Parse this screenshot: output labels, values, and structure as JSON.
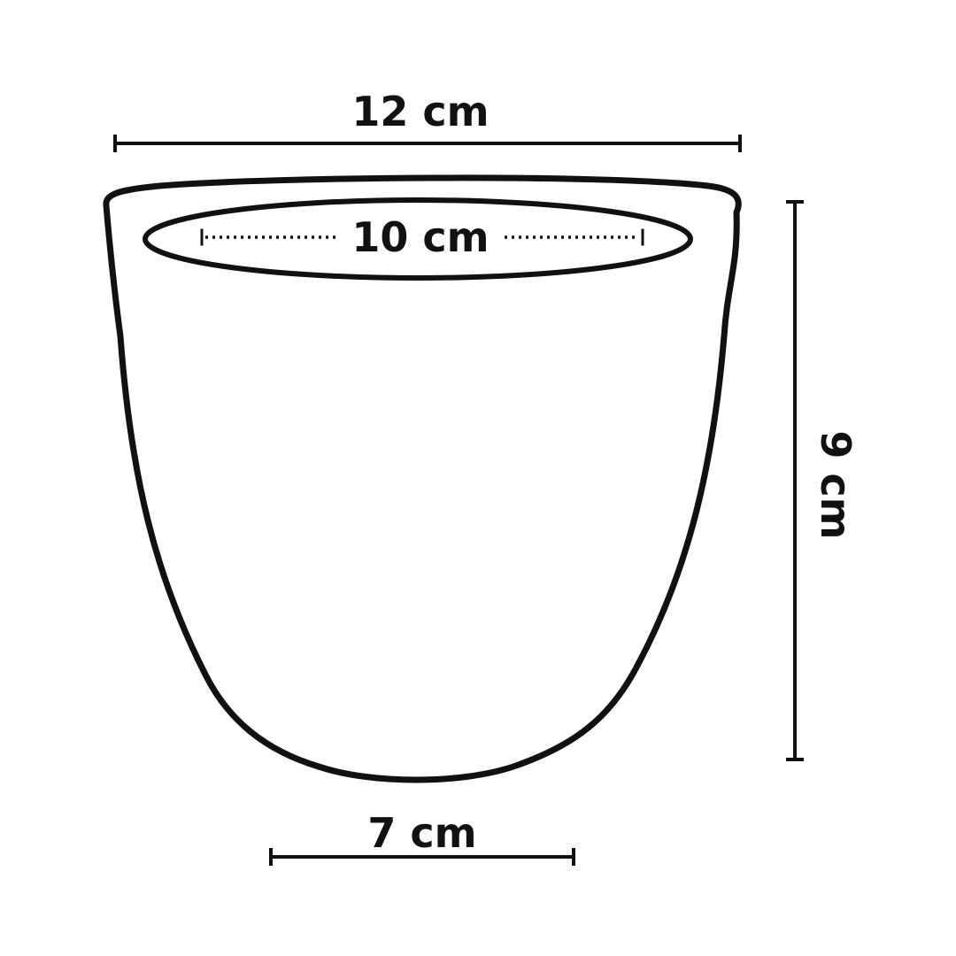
{
  "dimensions": {
    "top_width": "12 cm",
    "inner_diameter": "10 cm",
    "height": "9 cm",
    "bottom_width": "7 cm"
  },
  "colors": {
    "stroke": "#111111",
    "background": "#ffffff"
  }
}
